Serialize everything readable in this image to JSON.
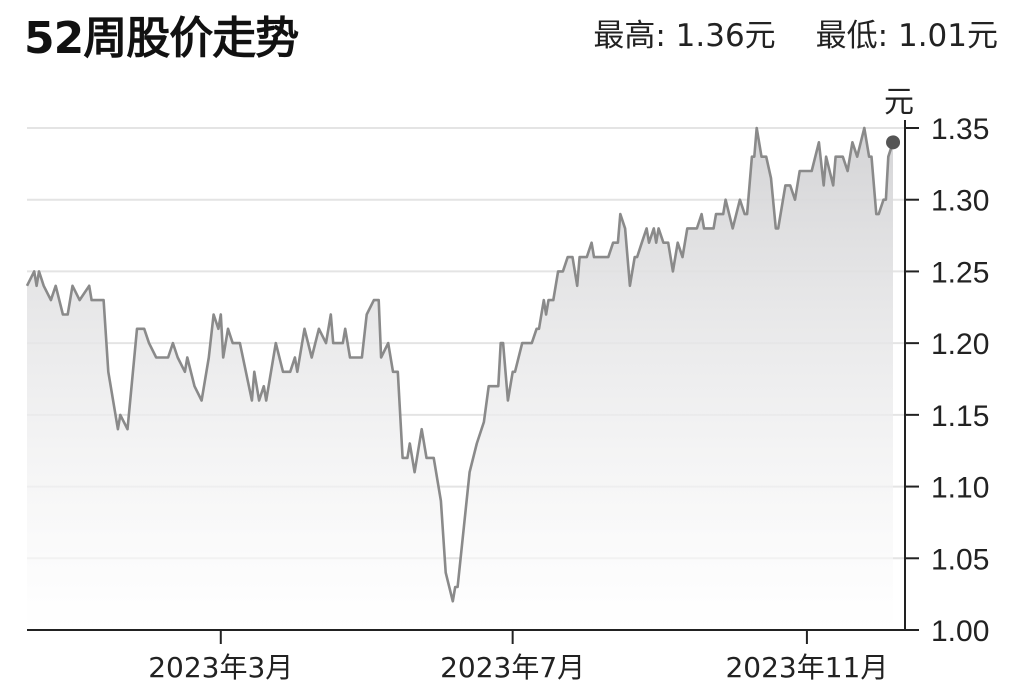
{
  "header": {
    "title": "52周股价走势",
    "high_label": "最高: 1.36元",
    "low_label": "最低: 1.01元"
  },
  "chart_data": {
    "type": "area",
    "title": "52周股价走势",
    "ylabel": "元",
    "ylim": [
      1.0,
      1.35
    ],
    "yticks": [
      "1.00",
      "1.05",
      "1.10",
      "1.15",
      "1.20",
      "1.25",
      "1.30",
      "1.35"
    ],
    "xlim": [
      "2022-12-10",
      "2023-12-12"
    ],
    "xticks": [
      {
        "date": "2023-03-01",
        "label": "2023年3月"
      },
      {
        "date": "2023-07-01",
        "label": "2023年7月"
      },
      {
        "date": "2023-11-01",
        "label": "2023年11月"
      }
    ],
    "grid": true,
    "colors": {
      "line": "#8a8a8a",
      "fill_top": "#d4d4d6",
      "marker": "#555555",
      "grid": "#e4e4e4",
      "axis": "#222222"
    },
    "last_point_marker": true,
    "series": [
      {
        "x": [
          "2022-12-10",
          "2022-12-13",
          "2022-12-14",
          "2022-12-15",
          "2022-12-17",
          "2022-12-20",
          "2022-12-22",
          "2022-12-25",
          "2022-12-27",
          "2022-12-29",
          "2023-01-01",
          "2023-01-05",
          "2023-01-06",
          "2023-01-11",
          "2023-01-13",
          "2023-01-17",
          "2023-01-18",
          "2023-01-21",
          "2023-01-25",
          "2023-01-28",
          "2023-01-30",
          "2023-02-02",
          "2023-02-07",
          "2023-02-09",
          "2023-02-11",
          "2023-02-14",
          "2023-02-15",
          "2023-02-18",
          "2023-02-21",
          "2023-02-24",
          "2023-02-26",
          "2023-02-28",
          "2023-03-01",
          "2023-03-02",
          "2023-03-04",
          "2023-03-06",
          "2023-03-09",
          "2023-03-14",
          "2023-03-15",
          "2023-03-17",
          "2023-03-19",
          "2023-03-20",
          "2023-03-24",
          "2023-03-27",
          "2023-03-30",
          "2023-04-01",
          "2023-04-02",
          "2023-04-05",
          "2023-04-08",
          "2023-04-11",
          "2023-04-14",
          "2023-04-16",
          "2023-04-17",
          "2023-04-21",
          "2023-04-22",
          "2023-04-24",
          "2023-04-29",
          "2023-05-01",
          "2023-05-04",
          "2023-05-06",
          "2023-05-07",
          "2023-05-10",
          "2023-05-12",
          "2023-05-14",
          "2023-05-16",
          "2023-05-18",
          "2023-05-19",
          "2023-05-21",
          "2023-05-24",
          "2023-05-26",
          "2023-05-29",
          "2023-06-01",
          "2023-06-03",
          "2023-06-06",
          "2023-06-07",
          "2023-06-08",
          "2023-06-13",
          "2023-06-16",
          "2023-06-19",
          "2023-06-21",
          "2023-06-25",
          "2023-06-26",
          "2023-06-27",
          "2023-06-29",
          "2023-07-01",
          "2023-07-02",
          "2023-07-05",
          "2023-07-09",
          "2023-07-11",
          "2023-07-12",
          "2023-07-14",
          "2023-07-15",
          "2023-07-16",
          "2023-07-18",
          "2023-07-20",
          "2023-07-22",
          "2023-07-24",
          "2023-07-26",
          "2023-07-28",
          "2023-07-29",
          "2023-08-01",
          "2023-08-03",
          "2023-08-04",
          "2023-08-10",
          "2023-08-12",
          "2023-08-14",
          "2023-08-15",
          "2023-08-17",
          "2023-08-19",
          "2023-08-21",
          "2023-08-22",
          "2023-08-24",
          "2023-08-26",
          "2023-08-27",
          "2023-08-29",
          "2023-08-30",
          "2023-08-31",
          "2023-09-02",
          "2023-09-04",
          "2023-09-06",
          "2023-09-08",
          "2023-09-10",
          "2023-09-12",
          "2023-09-16",
          "2023-09-18",
          "2023-09-19",
          "2023-09-23",
          "2023-09-24",
          "2023-09-27",
          "2023-09-28",
          "2023-10-01",
          "2023-10-04",
          "2023-10-06",
          "2023-10-07",
          "2023-10-09",
          "2023-10-10",
          "2023-10-11",
          "2023-10-13",
          "2023-10-15",
          "2023-10-17",
          "2023-10-19",
          "2023-10-20",
          "2023-10-23",
          "2023-10-25",
          "2023-10-27",
          "2023-10-29",
          "2023-11-03",
          "2023-11-06",
          "2023-11-08",
          "2023-11-09",
          "2023-11-12",
          "2023-11-13",
          "2023-11-16",
          "2023-11-18",
          "2023-11-20",
          "2023-11-22",
          "2023-11-25",
          "2023-11-27",
          "2023-11-28",
          "2023-11-30",
          "2023-12-01",
          "2023-12-03",
          "2023-12-04",
          "2023-12-05",
          "2023-12-07"
        ],
        "y": [
          1.24,
          1.25,
          1.24,
          1.25,
          1.24,
          1.23,
          1.24,
          1.22,
          1.22,
          1.24,
          1.23,
          1.24,
          1.23,
          1.23,
          1.18,
          1.14,
          1.15,
          1.14,
          1.21,
          1.21,
          1.2,
          1.19,
          1.19,
          1.2,
          1.19,
          1.18,
          1.19,
          1.17,
          1.16,
          1.19,
          1.22,
          1.21,
          1.22,
          1.19,
          1.21,
          1.2,
          1.2,
          1.16,
          1.18,
          1.16,
          1.17,
          1.16,
          1.2,
          1.18,
          1.18,
          1.19,
          1.18,
          1.21,
          1.19,
          1.21,
          1.2,
          1.22,
          1.2,
          1.2,
          1.21,
          1.19,
          1.19,
          1.22,
          1.23,
          1.23,
          1.19,
          1.2,
          1.18,
          1.18,
          1.12,
          1.12,
          1.13,
          1.11,
          1.14,
          1.12,
          1.12,
          1.09,
          1.04,
          1.02,
          1.03,
          1.03,
          1.11,
          1.13,
          1.145,
          1.17,
          1.17,
          1.2,
          1.2,
          1.16,
          1.18,
          1.18,
          1.2,
          1.2,
          1.21,
          1.21,
          1.23,
          1.22,
          1.23,
          1.23,
          1.25,
          1.25,
          1.26,
          1.26,
          1.24,
          1.26,
          1.26,
          1.27,
          1.26,
          1.26,
          1.27,
          1.27,
          1.29,
          1.28,
          1.24,
          1.26,
          1.26,
          1.27,
          1.28,
          1.27,
          1.28,
          1.27,
          1.28,
          1.27,
          1.27,
          1.25,
          1.27,
          1.26,
          1.28,
          1.28,
          1.29,
          1.28,
          1.28,
          1.29,
          1.29,
          1.3,
          1.28,
          1.3,
          1.29,
          1.29,
          1.33,
          1.33,
          1.35,
          1.33,
          1.33,
          1.315,
          1.28,
          1.28,
          1.31,
          1.31,
          1.3,
          1.32,
          1.32,
          1.34,
          1.31,
          1.33,
          1.31,
          1.33,
          1.33,
          1.32,
          1.34,
          1.33,
          1.35,
          1.33,
          1.33,
          1.29,
          1.29,
          1.3,
          1.3,
          1.33,
          1.34
        ]
      }
    ]
  }
}
